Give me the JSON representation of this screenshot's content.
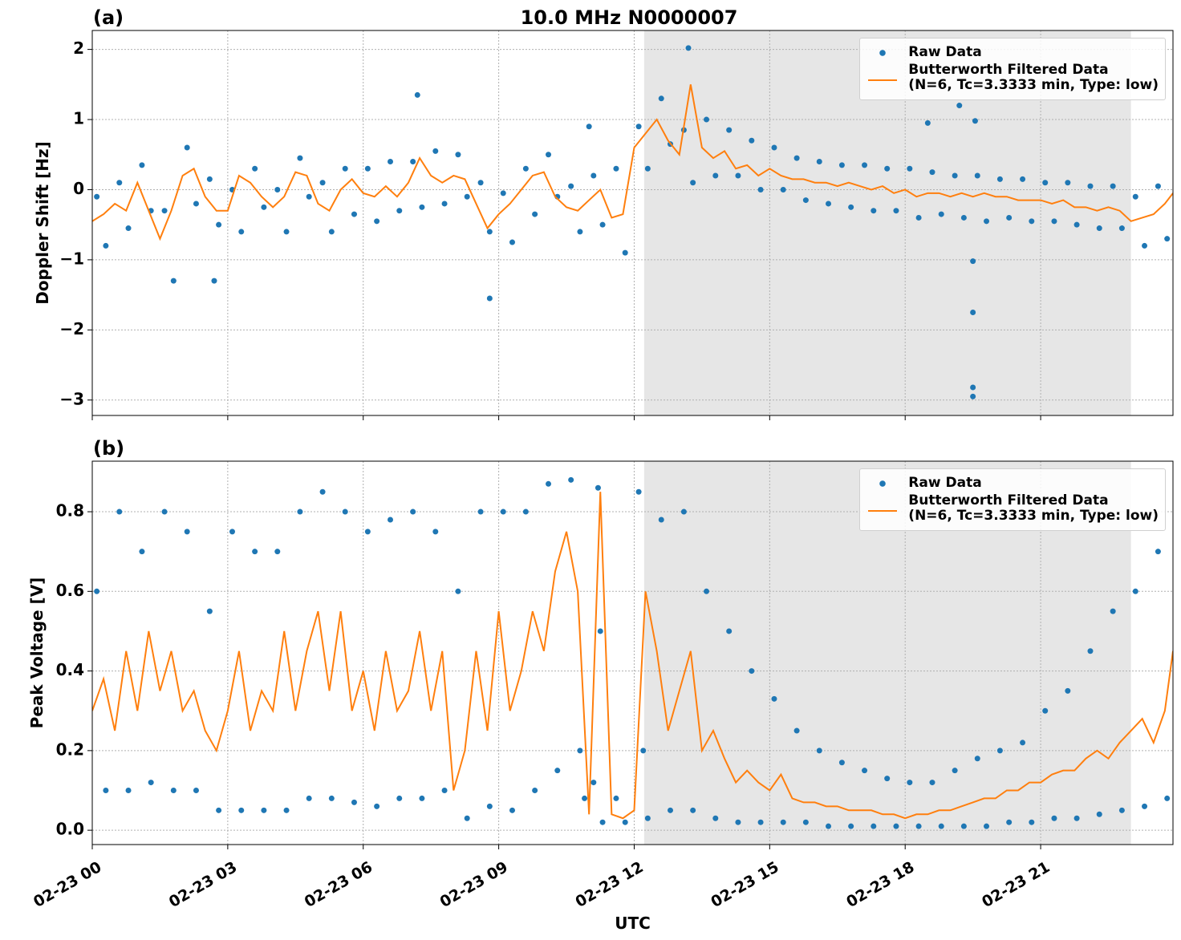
{
  "chart_data": [
    {
      "type": "line",
      "panel_label": "(a)",
      "title": "10.0 MHz N0000007",
      "ylabel": "Doppler Shift [Hz]",
      "ylim": [
        -3.22,
        2.27
      ],
      "yticks": [
        {
          "value": -3,
          "label": "−3"
        },
        {
          "value": -2,
          "label": "−2"
        },
        {
          "value": -1,
          "label": "−1"
        },
        0,
        1,
        2
      ],
      "grid": true,
      "legend": "upper right",
      "shaded_span": [
        12.22,
        23.0
      ],
      "series": [
        {
          "name": "Raw Data",
          "type": "scatter",
          "color": "#1f77b4",
          "x": [
            0.1,
            0.3,
            0.6,
            0.8,
            1.1,
            1.3,
            1.6,
            1.8,
            2.1,
            2.3,
            2.6,
            2.8,
            3.1,
            3.3,
            3.6,
            3.8,
            4.1,
            4.3,
            4.6,
            4.8,
            5.1,
            5.3,
            5.6,
            5.8,
            6.1,
            6.3,
            6.6,
            6.8,
            7.1,
            7.3,
            7.6,
            7.8,
            8.1,
            8.3,
            8.6,
            8.8,
            9.1,
            9.3,
            9.6,
            9.8,
            10.1,
            10.3,
            10.6,
            10.8,
            11.1,
            11.3,
            11.6,
            11.8,
            12.1,
            12.3,
            12.6,
            12.8,
            13.1,
            13.3,
            13.6,
            13.8,
            14.1,
            14.3,
            14.6,
            14.8,
            15.1,
            15.3,
            15.6,
            15.8,
            16.1,
            16.3,
            16.6,
            16.8,
            17.1,
            17.3,
            17.6,
            17.8,
            18.1,
            18.3,
            18.6,
            18.8,
            19.1,
            19.3,
            19.6,
            19.8,
            20.1,
            20.3,
            20.6,
            20.8,
            21.1,
            21.3,
            21.6,
            21.8,
            22.1,
            22.3,
            22.6,
            22.8,
            23.1,
            23.3,
            23.6,
            23.8,
            7.2,
            8.8,
            13.2,
            18.5,
            19.2,
            19.5,
            19.5,
            19.5,
            19.5,
            19.55,
            2.7,
            11.0
          ],
          "values": [
            -0.1,
            -0.8,
            0.1,
            -0.55,
            0.35,
            -0.3,
            -0.3,
            -1.3,
            0.6,
            -0.2,
            0.15,
            -0.5,
            0.0,
            -0.6,
            0.3,
            -0.25,
            0.0,
            -0.6,
            0.45,
            -0.1,
            0.1,
            -0.6,
            0.3,
            -0.35,
            0.3,
            -0.45,
            0.4,
            -0.3,
            0.4,
            -0.25,
            0.55,
            -0.2,
            0.5,
            -0.1,
            0.1,
            -0.6,
            -0.05,
            -0.75,
            0.3,
            -0.35,
            0.5,
            -0.1,
            0.05,
            -0.6,
            0.2,
            -0.5,
            0.3,
            -0.9,
            0.9,
            0.3,
            1.3,
            0.65,
            0.85,
            0.1,
            1.0,
            0.2,
            0.85,
            0.2,
            0.7,
            0.0,
            0.6,
            0.0,
            0.45,
            -0.15,
            0.4,
            -0.2,
            0.35,
            -0.25,
            0.35,
            -0.3,
            0.3,
            -0.3,
            0.3,
            -0.4,
            0.25,
            -0.35,
            0.2,
            -0.4,
            0.2,
            -0.45,
            0.15,
            -0.4,
            0.15,
            -0.45,
            0.1,
            -0.45,
            0.1,
            -0.5,
            0.05,
            -0.55,
            0.05,
            -0.55,
            -0.1,
            -0.8,
            0.05,
            -0.7,
            1.35,
            -1.55,
            2.02,
            0.95,
            1.2,
            -2.95,
            -2.82,
            -1.75,
            -1.02,
            0.98,
            -1.3,
            0.9
          ]
        },
        {
          "name": "Butterworth Filtered Data\n(N=6, Tc=3.3333 min, Type: low)",
          "type": "line",
          "color": "#ff7f0e",
          "x": [
            0,
            0.25,
            0.5,
            0.75,
            1,
            1.25,
            1.5,
            1.75,
            2,
            2.25,
            2.5,
            2.75,
            3,
            3.25,
            3.5,
            3.75,
            4,
            4.25,
            4.5,
            4.75,
            5,
            5.25,
            5.5,
            5.75,
            6,
            6.25,
            6.5,
            6.75,
            7,
            7.25,
            7.5,
            7.75,
            8,
            8.25,
            8.5,
            8.75,
            9,
            9.25,
            9.5,
            9.75,
            10,
            10.25,
            10.5,
            10.75,
            11,
            11.25,
            11.5,
            11.75,
            12,
            12.25,
            12.5,
            12.75,
            13,
            13.25,
            13.5,
            13.75,
            14,
            14.25,
            14.5,
            14.75,
            15,
            15.25,
            15.5,
            15.75,
            16,
            16.25,
            16.5,
            16.75,
            17,
            17.25,
            17.5,
            17.75,
            18,
            18.25,
            18.5,
            18.75,
            19,
            19.25,
            19.5,
            19.75,
            20,
            20.25,
            20.5,
            20.75,
            21,
            21.25,
            21.5,
            21.75,
            22,
            22.25,
            22.5,
            22.75,
            23,
            23.25,
            23.5,
            23.75,
            23.93
          ],
          "values": [
            -0.45,
            -0.35,
            -0.2,
            -0.3,
            0.1,
            -0.3,
            -0.7,
            -0.3,
            0.2,
            0.3,
            -0.1,
            -0.3,
            -0.3,
            0.2,
            0.1,
            -0.1,
            -0.25,
            -0.1,
            0.25,
            0.2,
            -0.2,
            -0.3,
            0.0,
            0.15,
            -0.05,
            -0.1,
            0.05,
            -0.1,
            0.1,
            0.45,
            0.2,
            0.1,
            0.2,
            0.15,
            -0.2,
            -0.55,
            -0.35,
            -0.2,
            0.0,
            0.2,
            0.25,
            -0.1,
            -0.25,
            -0.3,
            -0.15,
            0.0,
            -0.4,
            -0.35,
            0.6,
            0.8,
            1.0,
            0.7,
            0.5,
            1.5,
            0.6,
            0.45,
            0.55,
            0.3,
            0.35,
            0.2,
            0.3,
            0.2,
            0.15,
            0.15,
            0.1,
            0.1,
            0.05,
            0.1,
            0.05,
            0.0,
            0.05,
            -0.05,
            0.0,
            -0.1,
            -0.05,
            -0.05,
            -0.1,
            -0.05,
            -0.1,
            -0.05,
            -0.1,
            -0.1,
            -0.15,
            -0.15,
            -0.15,
            -0.2,
            -0.15,
            -0.25,
            -0.25,
            -0.3,
            -0.25,
            -0.3,
            -0.45,
            -0.4,
            -0.35,
            -0.2,
            -0.05
          ]
        }
      ]
    },
    {
      "type": "line",
      "panel_label": "(b)",
      "ylabel": "Peak Voltage [V]",
      "xlabel": "UTC",
      "xlim": [
        0,
        23.93
      ],
      "xticks": [
        {
          "value": 0,
          "label": "02-23 00"
        },
        {
          "value": 3,
          "label": "02-23 03"
        },
        {
          "value": 6,
          "label": "02-23 06"
        },
        {
          "value": 9,
          "label": "02-23 09"
        },
        {
          "value": 12,
          "label": "02-23 12"
        },
        {
          "value": 15,
          "label": "02-23 15"
        },
        {
          "value": 18,
          "label": "02-23 18"
        },
        {
          "value": 21,
          "label": "02-23 21"
        }
      ],
      "ylim": [
        -0.036,
        0.927
      ],
      "yticks": [
        {
          "value": 0,
          "label": "0.0"
        },
        0.2,
        0.4,
        0.6,
        0.8
      ],
      "grid": true,
      "legend": "upper right",
      "shaded_span": [
        12.22,
        23.0
      ],
      "series": [
        {
          "name": "Raw Data",
          "type": "scatter",
          "color": "#1f77b4",
          "x": [
            0.1,
            0.3,
            0.6,
            0.8,
            1.1,
            1.3,
            1.6,
            1.8,
            2.1,
            2.3,
            2.6,
            2.8,
            3.1,
            3.3,
            3.6,
            3.8,
            4.1,
            4.3,
            4.6,
            4.8,
            5.1,
            5.3,
            5.6,
            5.8,
            6.1,
            6.3,
            6.6,
            6.8,
            7.1,
            7.3,
            7.6,
            7.8,
            8.1,
            8.3,
            8.6,
            8.8,
            9.1,
            9.3,
            9.6,
            9.8,
            10.1,
            10.3,
            10.6,
            10.8,
            11.1,
            11.3,
            11.6,
            11.8,
            12.1,
            12.3,
            12.6,
            12.8,
            13.1,
            13.3,
            13.6,
            13.8,
            14.1,
            14.3,
            14.6,
            14.8,
            15.1,
            15.3,
            15.6,
            15.8,
            16.1,
            16.3,
            16.6,
            16.8,
            17.1,
            17.3,
            17.6,
            17.8,
            18.1,
            18.3,
            18.6,
            18.8,
            19.1,
            19.3,
            19.6,
            19.8,
            20.1,
            20.3,
            20.6,
            20.8,
            21.1,
            21.3,
            21.6,
            21.8,
            22.1,
            22.3,
            22.6,
            22.8,
            23.1,
            23.3,
            23.6,
            23.8,
            11.2,
            11.25,
            10.9,
            12.2
          ],
          "values": [
            0.6,
            0.1,
            0.8,
            0.1,
            0.7,
            0.12,
            0.8,
            0.1,
            0.75,
            0.1,
            0.55,
            0.05,
            0.75,
            0.05,
            0.7,
            0.05,
            0.7,
            0.05,
            0.8,
            0.08,
            0.85,
            0.08,
            0.8,
            0.07,
            0.75,
            0.06,
            0.78,
            0.08,
            0.8,
            0.08,
            0.75,
            0.1,
            0.6,
            0.03,
            0.8,
            0.06,
            0.8,
            0.05,
            0.8,
            0.1,
            0.87,
            0.15,
            0.88,
            0.2,
            0.12,
            0.02,
            0.08,
            0.02,
            0.85,
            0.03,
            0.78,
            0.05,
            0.8,
            0.05,
            0.6,
            0.03,
            0.5,
            0.02,
            0.4,
            0.02,
            0.33,
            0.02,
            0.25,
            0.02,
            0.2,
            0.01,
            0.17,
            0.01,
            0.15,
            0.01,
            0.13,
            0.01,
            0.12,
            0.01,
            0.12,
            0.01,
            0.15,
            0.01,
            0.18,
            0.01,
            0.2,
            0.02,
            0.22,
            0.02,
            0.3,
            0.03,
            0.35,
            0.03,
            0.45,
            0.04,
            0.55,
            0.05,
            0.6,
            0.06,
            0.7,
            0.08,
            0.86,
            0.5,
            0.08,
            0.2
          ]
        },
        {
          "name": "Butterworth Filtered Data\n(N=6, Tc=3.3333 min, Type: low)",
          "type": "line",
          "color": "#ff7f0e",
          "x": [
            0,
            0.25,
            0.5,
            0.75,
            1,
            1.25,
            1.5,
            1.75,
            2,
            2.25,
            2.5,
            2.75,
            3,
            3.25,
            3.5,
            3.75,
            4,
            4.25,
            4.5,
            4.75,
            5,
            5.25,
            5.5,
            5.75,
            6,
            6.25,
            6.5,
            6.75,
            7,
            7.25,
            7.5,
            7.75,
            8,
            8.25,
            8.5,
            8.75,
            9,
            9.25,
            9.5,
            9.75,
            10,
            10.25,
            10.5,
            10.75,
            11,
            11.25,
            11.5,
            11.75,
            12,
            12.25,
            12.5,
            12.75,
            13,
            13.25,
            13.5,
            13.75,
            14,
            14.25,
            14.5,
            14.75,
            15,
            15.25,
            15.5,
            15.75,
            16,
            16.25,
            16.5,
            16.75,
            17,
            17.25,
            17.5,
            17.75,
            18,
            18.25,
            18.5,
            18.75,
            19,
            19.25,
            19.5,
            19.75,
            20,
            20.25,
            20.5,
            20.75,
            21,
            21.25,
            21.5,
            21.75,
            22,
            22.25,
            22.5,
            22.75,
            23,
            23.25,
            23.5,
            23.75,
            23.93
          ],
          "values": [
            0.3,
            0.38,
            0.25,
            0.45,
            0.3,
            0.5,
            0.35,
            0.45,
            0.3,
            0.35,
            0.25,
            0.2,
            0.3,
            0.45,
            0.25,
            0.35,
            0.3,
            0.5,
            0.3,
            0.45,
            0.55,
            0.35,
            0.55,
            0.3,
            0.4,
            0.25,
            0.45,
            0.3,
            0.35,
            0.5,
            0.3,
            0.45,
            0.1,
            0.2,
            0.45,
            0.25,
            0.55,
            0.3,
            0.4,
            0.55,
            0.45,
            0.65,
            0.75,
            0.6,
            0.04,
            0.85,
            0.04,
            0.03,
            0.05,
            0.6,
            0.45,
            0.25,
            0.35,
            0.45,
            0.2,
            0.25,
            0.18,
            0.12,
            0.15,
            0.12,
            0.1,
            0.14,
            0.08,
            0.07,
            0.07,
            0.06,
            0.06,
            0.05,
            0.05,
            0.05,
            0.04,
            0.04,
            0.03,
            0.04,
            0.04,
            0.05,
            0.05,
            0.06,
            0.07,
            0.08,
            0.08,
            0.1,
            0.1,
            0.12,
            0.12,
            0.14,
            0.15,
            0.15,
            0.18,
            0.2,
            0.18,
            0.22,
            0.25,
            0.28,
            0.22,
            0.3,
            0.45
          ]
        }
      ]
    }
  ]
}
